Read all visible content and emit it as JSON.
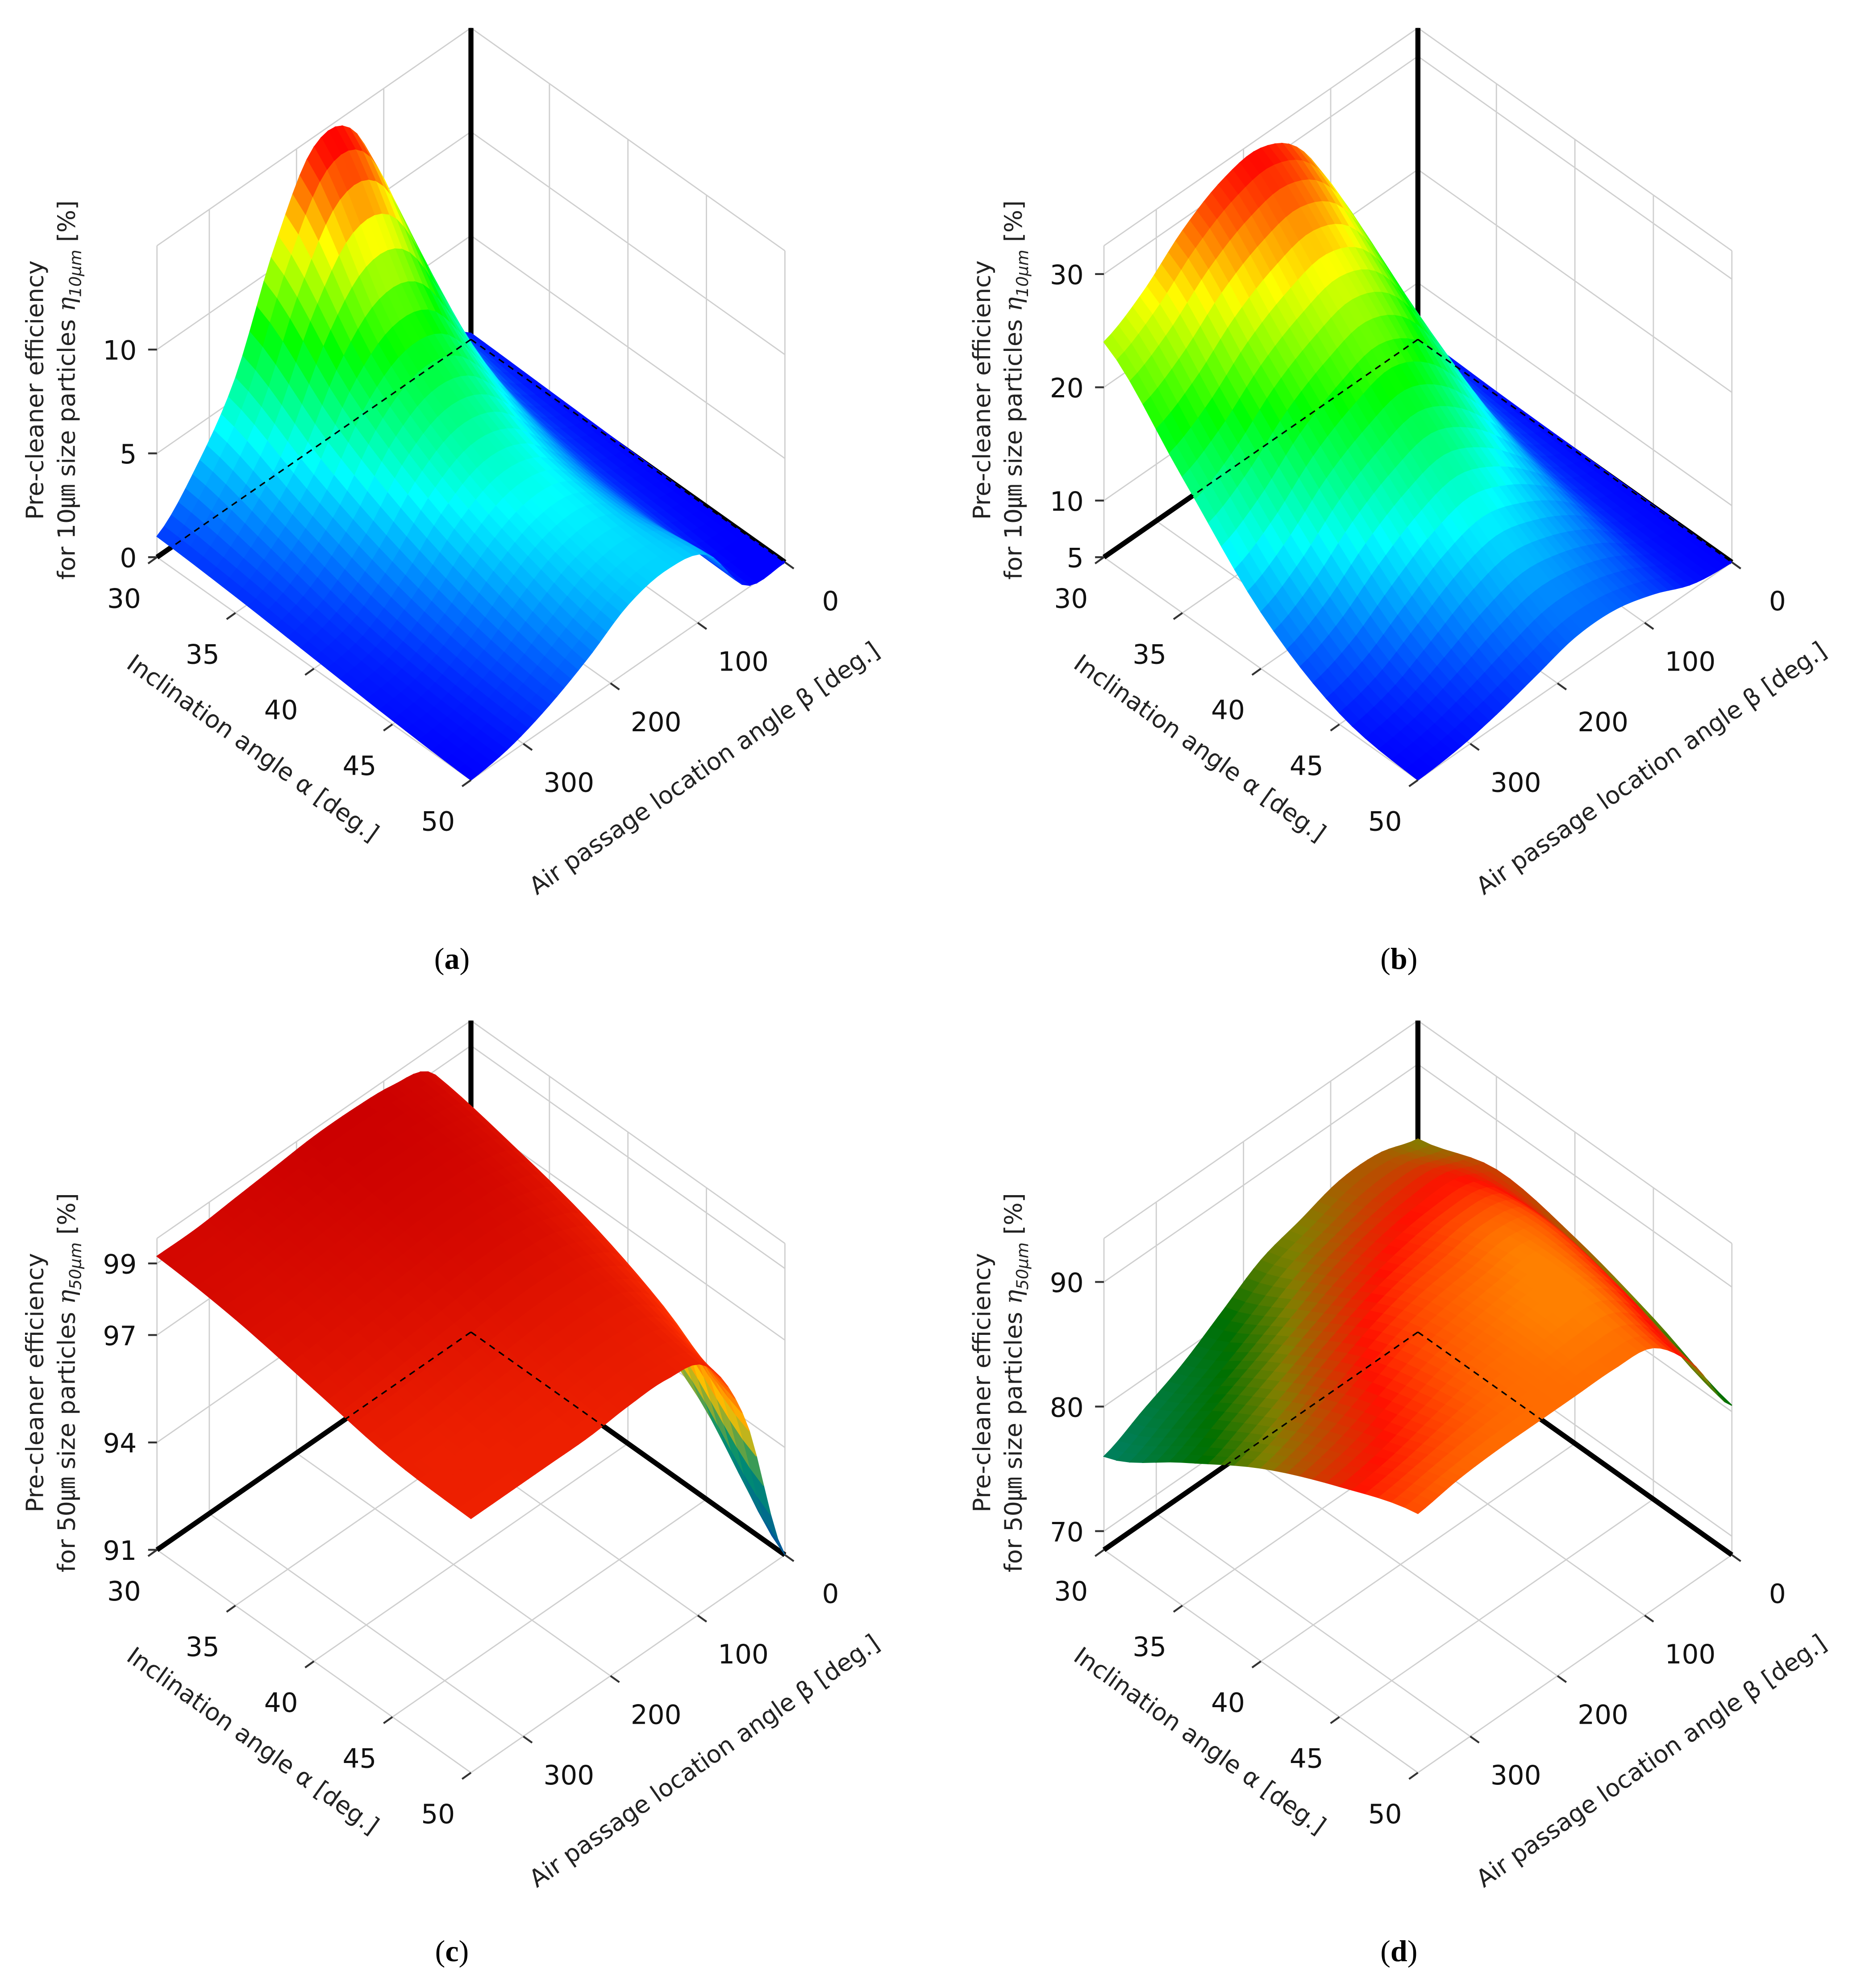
{
  "figure": {
    "panels": [
      "a",
      "b",
      "c",
      "d"
    ]
  },
  "chart_data": [
    {
      "type": "surface",
      "caption_letter": "a",
      "alpha_axis": {
        "label": "Inclination angle α [deg.]",
        "ticks": [
          30,
          35,
          40,
          45,
          50
        ],
        "range": [
          30,
          50
        ]
      },
      "beta_axis": {
        "label": "Air passage location angle β [deg.]",
        "ticks": [
          0,
          100,
          200,
          300
        ],
        "range": [
          0,
          360
        ]
      },
      "z_axis": {
        "line1": "Pre-cleaner efficiency",
        "line2_prefix": "for 10㎛ size particles ",
        "eta": "η",
        "subscript": "10μm",
        "suffix": " [%]",
        "ticks": [
          0,
          5,
          10
        ],
        "range": [
          0,
          15
        ]
      },
      "grid": true,
      "alpha": [
        30,
        35,
        40,
        45,
        50
      ],
      "beta": [
        0,
        45,
        90,
        135,
        180,
        225,
        270,
        315,
        360
      ],
      "z": [
        [
          0.3,
          3,
          9,
          14,
          14.5,
          11,
          6,
          3,
          1
        ],
        [
          0.2,
          1.5,
          5,
          8,
          8.5,
          7,
          4,
          2,
          0.8
        ],
        [
          0.1,
          0.8,
          3,
          5,
          5.5,
          4.5,
          2.5,
          1,
          0.5
        ],
        [
          0,
          0.5,
          2.5,
          4,
          4,
          3,
          1.5,
          0.5,
          0.2
        ],
        [
          0,
          0.2,
          3,
          3.6,
          3.2,
          2,
          1,
          0.3,
          0
        ]
      ],
      "colorscale": [
        [
          0,
          "#0000ff"
        ],
        [
          0.3,
          "#00ffff"
        ],
        [
          0.55,
          "#00ff00"
        ],
        [
          0.78,
          "#ffff00"
        ],
        [
          1,
          "#ff0000"
        ]
      ]
    },
    {
      "type": "surface",
      "caption_letter": "b",
      "alpha_axis": {
        "label": "Inclination angle α [deg.]",
        "ticks": [
          30,
          35,
          40,
          45,
          50
        ],
        "range": [
          30,
          50
        ]
      },
      "beta_axis": {
        "label": "Air passage location angle β [deg.]",
        "ticks": [
          0,
          100,
          200,
          300
        ],
        "range": [
          0,
          360
        ]
      },
      "z_axis": {
        "line1": "Pre-cleaner efficiency",
        "line2_prefix": "for 10㎛ size particles ",
        "eta": "η",
        "subscript": "10μm",
        "suffix": " [%]",
        "ticks": [
          5,
          10,
          20,
          30
        ],
        "range": [
          5,
          32.5
        ]
      },
      "grid": true,
      "alpha": [
        30,
        35,
        40,
        45,
        50
      ],
      "beta": [
        0,
        45,
        90,
        135,
        180,
        225,
        270,
        315,
        360
      ],
      "z": [
        [
          5.5,
          12,
          22,
          29,
          31.5,
          31,
          29,
          26,
          24
        ],
        [
          5.3,
          9,
          17,
          23,
          25,
          24,
          22,
          19,
          17
        ],
        [
          5.2,
          7,
          12,
          16,
          18,
          17,
          15,
          12,
          10
        ],
        [
          5.1,
          6,
          9,
          11,
          12,
          11,
          9,
          7,
          6
        ],
        [
          5,
          5.5,
          7,
          8,
          8,
          7,
          6,
          5.3,
          5
        ]
      ],
      "colorscale": [
        [
          0,
          "#0000ff"
        ],
        [
          0.3,
          "#00ffff"
        ],
        [
          0.55,
          "#00ff00"
        ],
        [
          0.78,
          "#ffff00"
        ],
        [
          1,
          "#ff0000"
        ]
      ]
    },
    {
      "type": "surface",
      "caption_letter": "c",
      "alpha_axis": {
        "label": "Inclination angle α [deg.]",
        "ticks": [
          30,
          35,
          40,
          45,
          50
        ],
        "range": [
          30,
          50
        ]
      },
      "beta_axis": {
        "label": "Air passage location angle β [deg.]",
        "ticks": [
          0,
          100,
          200,
          300
        ],
        "range": [
          0,
          360
        ]
      },
      "z_axis": {
        "line1": "Pre-cleaner efficiency",
        "line2_prefix": "for 50㎛ size particles ",
        "eta": "η",
        "subscript": "50μm",
        "suffix": " [%]",
        "ticks": [
          91,
          94,
          97,
          99
        ],
        "range": [
          91,
          99.7
        ]
      },
      "grid": true,
      "alpha": [
        30,
        35,
        40,
        45,
        50
      ],
      "beta": [
        0,
        45,
        90,
        135,
        180,
        225,
        270,
        315,
        360
      ],
      "z": [
        [
          97,
          99,
          99.4,
          99.5,
          99.5,
          99.4,
          99.3,
          99.2,
          99.2
        ],
        [
          96,
          98.6,
          99.2,
          99.3,
          99.3,
          99.2,
          99.1,
          99,
          99
        ],
        [
          95,
          98,
          98.8,
          99,
          99,
          98.9,
          98.8,
          98.7,
          98.6
        ],
        [
          93.5,
          97,
          98.3,
          98.5,
          98.5,
          98.4,
          98.3,
          98.2,
          98.2
        ],
        [
          91,
          95.5,
          97.8,
          98.2,
          98.2,
          98.1,
          98.1,
          98.1,
          98.1
        ]
      ],
      "colorscale": [
        [
          0,
          "#0050a0"
        ],
        [
          0.3,
          "#009070"
        ],
        [
          0.5,
          "#ffc000"
        ],
        [
          0.75,
          "#ff3000"
        ],
        [
          1,
          "#cc0000"
        ]
      ]
    },
    {
      "type": "surface",
      "caption_letter": "d",
      "alpha_axis": {
        "label": "Inclination angle α [deg.]",
        "ticks": [
          30,
          35,
          40,
          45,
          50
        ],
        "range": [
          30,
          50
        ]
      },
      "beta_axis": {
        "label": "Air passage location angle β [deg.]",
        "ticks": [
          0,
          100,
          200,
          300
        ],
        "range": [
          0,
          360
        ]
      },
      "z_axis": {
        "line1": "Pre-cleaner efficiency",
        "line2_prefix": "for 50㎛ size particles ",
        "eta": "η",
        "subscript": "50μm",
        "suffix": " [%]",
        "ticks": [
          70,
          80,
          90
        ],
        "range": [
          68.5,
          93.5
        ]
      },
      "grid": true,
      "alpha": [
        30,
        35,
        40,
        45,
        50
      ],
      "beta": [
        0,
        45,
        90,
        135,
        180,
        225,
        270,
        315,
        360
      ],
      "z": [
        [
          84,
          85,
          85,
          84,
          83,
          81,
          79,
          77.5,
          76
        ],
        [
          86,
          87.5,
          87.5,
          87,
          86,
          84.5,
          83,
          81.5,
          80
        ],
        [
          85,
          89,
          90,
          89.5,
          89,
          88,
          86.5,
          85,
          84
        ],
        [
          83,
          88,
          90.5,
          90.5,
          90,
          89.5,
          88.5,
          87.5,
          87
        ],
        [
          80.5,
          86,
          89.5,
          90,
          90,
          90,
          90,
          89.8,
          89.3
        ]
      ],
      "colorscale": [
        [
          0,
          "#008060"
        ],
        [
          0.35,
          "#007000"
        ],
        [
          0.55,
          "#808000"
        ],
        [
          0.8,
          "#ff1000"
        ],
        [
          1,
          "#ff8000"
        ]
      ]
    }
  ]
}
